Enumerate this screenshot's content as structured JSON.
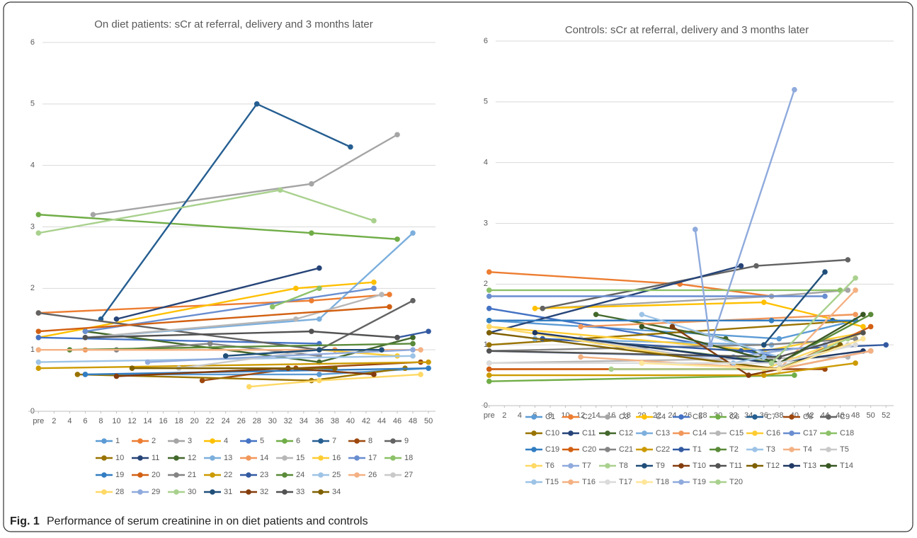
{
  "chart_data": [
    {
      "type": "line",
      "title": "On diet patients:  sCr at referral, delivery and 3 months later",
      "xlim": [
        -1.3,
        50.9
      ],
      "ylim": [
        0,
        6
      ],
      "yticks": [
        0,
        1,
        2,
        3,
        4,
        5,
        6
      ],
      "grid": true,
      "xticks": [
        {
          "value": 0,
          "label": "pre"
        },
        2,
        4,
        6,
        8,
        10,
        12,
        14,
        16,
        18,
        20,
        22,
        24,
        26,
        28,
        30,
        32,
        34,
        36,
        38,
        40,
        42,
        44,
        46,
        48,
        50
      ],
      "legend": "bottom",
      "series": [
        {
          "name": "1",
          "color": "#5B9BD5",
          "x": [
            6,
            36,
            50
          ],
          "values": [
            0.6,
            0.6,
            0.7
          ]
        },
        {
          "name": "2",
          "color": "#ED7D31",
          "x": [
            0,
            35,
            45
          ],
          "values": [
            1.6,
            1.8,
            1.9
          ]
        },
        {
          "name": "3",
          "color": "#A5A5A5",
          "x": [
            7,
            35,
            46
          ],
          "values": [
            3.2,
            3.7,
            4.5
          ]
        },
        {
          "name": "4",
          "color": "#FFC000",
          "x": [
            0,
            33,
            43
          ],
          "values": [
            1.2,
            2.0,
            2.1
          ]
        },
        {
          "name": "5",
          "color": "#4472C4",
          "x": [
            0,
            36
          ],
          "values": [
            1.2,
            1.1
          ]
        },
        {
          "name": "6",
          "color": "#70AD47",
          "x": [
            0,
            35,
            46
          ],
          "values": [
            3.2,
            2.9,
            2.8
          ]
        },
        {
          "name": "7",
          "color": "#255E91",
          "x": [
            8,
            28,
            40
          ],
          "values": [
            1.5,
            5.0,
            4.3
          ]
        },
        {
          "name": "8",
          "color": "#9E480E",
          "x": [
            21,
            33,
            49
          ],
          "values": [
            0.5,
            0.7,
            0.8
          ]
        },
        {
          "name": "9",
          "color": "#636363",
          "x": [
            0,
            36,
            48
          ],
          "values": [
            1.6,
            1.0,
            1.8
          ]
        },
        {
          "name": "10",
          "color": "#997300",
          "x": [
            5,
            35,
            47
          ],
          "values": [
            0.6,
            0.5,
            0.7
          ]
        },
        {
          "name": "11",
          "color": "#264478",
          "x": [
            10,
            36
          ],
          "values": [
            1.5,
            2.33
          ]
        },
        {
          "name": "12",
          "color": "#43682B",
          "x": [
            6,
            36,
            48
          ],
          "values": [
            1.3,
            0.8,
            1.2
          ]
        },
        {
          "name": "13",
          "color": "#7CAFDD",
          "x": [
            6,
            36,
            48
          ],
          "values": [
            1.2,
            1.5,
            2.9
          ]
        },
        {
          "name": "14",
          "color": "#F1975A",
          "x": [
            6,
            38
          ],
          "values": [
            1.0,
            1.0
          ]
        },
        {
          "name": "15",
          "color": "#B7B7B7",
          "x": [
            6,
            33,
            44
          ],
          "values": [
            1.2,
            1.5,
            1.9
          ]
        },
        {
          "name": "16",
          "color": "#FFCD33",
          "x": [
            36,
            46
          ],
          "values": [
            1.0,
            0.9
          ]
        },
        {
          "name": "17",
          "color": "#698ED0",
          "x": [
            6,
            43
          ],
          "values": [
            1.3,
            2.0
          ]
        },
        {
          "name": "18",
          "color": "#8CC168",
          "x": [
            30,
            36
          ],
          "values": [
            1.7,
            2.0
          ]
        },
        {
          "name": "19",
          "color": "#327DC2",
          "x": [
            6,
            50
          ],
          "values": [
            0.6,
            0.7
          ]
        },
        {
          "name": "20",
          "color": "#D26012",
          "x": [
            0,
            45
          ],
          "values": [
            1.3,
            1.7
          ]
        },
        {
          "name": "21",
          "color": "#848484",
          "x": [
            10,
            22,
            36
          ],
          "values": [
            1.0,
            1.1,
            0.9
          ]
        },
        {
          "name": "22",
          "color": "#CC9A00",
          "x": [
            0,
            50
          ],
          "values": [
            0.7,
            0.8
          ]
        },
        {
          "name": "23",
          "color": "#335AA1",
          "x": [
            46,
            50
          ],
          "values": [
            1.2,
            1.3
          ]
        },
        {
          "name": "24",
          "color": "#5A8A39",
          "x": [
            4,
            48
          ],
          "values": [
            1.0,
            1.1
          ]
        },
        {
          "name": "25",
          "color": "#9DC3E6",
          "x": [
            0,
            48
          ],
          "values": [
            0.8,
            0.9
          ]
        },
        {
          "name": "26",
          "color": "#F4B183",
          "x": [
            0,
            49
          ],
          "values": [
            1.0,
            1.0
          ]
        },
        {
          "name": "27",
          "color": "#C9C9C9",
          "x": [
            18,
            36
          ],
          "values": [
            0.7,
            1.0
          ]
        },
        {
          "name": "28",
          "color": "#FFD966",
          "x": [
            27,
            36,
            49
          ],
          "values": [
            0.4,
            0.5,
            0.6
          ]
        },
        {
          "name": "29",
          "color": "#8FAADC",
          "x": [
            14,
            48
          ],
          "values": [
            0.8,
            1.0
          ]
        },
        {
          "name": "30",
          "color": "#A9D18E",
          "x": [
            0,
            31,
            43
          ],
          "values": [
            2.9,
            3.6,
            3.1
          ]
        },
        {
          "name": "31",
          "color": "#1F4E79",
          "x": [
            24,
            36,
            44
          ],
          "values": [
            0.9,
            1.0,
            1.0
          ]
        },
        {
          "name": "32",
          "color": "#843C0C",
          "x": [
            10,
            32,
            43
          ],
          "values": [
            0.57,
            0.7,
            0.6
          ]
        },
        {
          "name": "33",
          "color": "#525252",
          "x": [
            6,
            35,
            46
          ],
          "values": [
            1.2,
            1.3,
            1.2
          ]
        },
        {
          "name": "34",
          "color": "#7F6000",
          "x": [
            12,
            38
          ],
          "values": [
            0.7,
            0.7
          ]
        }
      ]
    },
    {
      "type": "line",
      "title": "Controls: sCr at referral, delivery and 3 months later",
      "xlim": [
        -1,
        53
      ],
      "ylim": [
        0,
        6
      ],
      "yticks": [
        0,
        1,
        2,
        3,
        4,
        5,
        6
      ],
      "grid": true,
      "xticks": [
        {
          "value": 0,
          "label": "pre"
        },
        2,
        4,
        6,
        8,
        10,
        12,
        14,
        16,
        18,
        20,
        22,
        24,
        26,
        28,
        30,
        32,
        34,
        36,
        38,
        40,
        42,
        44,
        46,
        48,
        50,
        52
      ],
      "legend": "bottom",
      "series": [
        {
          "name": "C1",
          "color": "#5B9BD5",
          "x": [
            0,
            38,
            48
          ],
          "values": [
            1.4,
            1.1,
            1.4
          ]
        },
        {
          "name": "C2",
          "color": "#ED7D31",
          "x": [
            0,
            25,
            37
          ],
          "values": [
            2.2,
            2.0,
            1.8
          ]
        },
        {
          "name": "C3",
          "color": "#A5A5A5",
          "x": [
            7,
            37,
            47
          ],
          "values": [
            1.6,
            1.8,
            1.9
          ]
        },
        {
          "name": "C4",
          "color": "#FFC000",
          "x": [
            6,
            36,
            49
          ],
          "values": [
            1.6,
            1.7,
            1.3
          ]
        },
        {
          "name": "C5",
          "color": "#4472C4",
          "x": [
            0,
            38
          ],
          "values": [
            1.6,
            0.8
          ]
        },
        {
          "name": "C6",
          "color": "#70AD47",
          "x": [
            0,
            40
          ],
          "values": [
            0.4,
            0.5
          ]
        },
        {
          "name": "C7",
          "color": "#255E91",
          "x": [
            0,
            45
          ],
          "values": [
            1.4,
            1.4
          ]
        },
        {
          "name": "C8",
          "color": "#9E480E",
          "x": [
            0,
            44
          ],
          "values": [
            0.6,
            0.6
          ]
        },
        {
          "name": "C9",
          "color": "#636363",
          "x": [
            7,
            35,
            47
          ],
          "values": [
            1.6,
            2.3,
            2.4
          ]
        },
        {
          "name": "C10",
          "color": "#997300",
          "x": [
            0,
            48
          ],
          "values": [
            1.0,
            1.4
          ]
        },
        {
          "name": "C11",
          "color": "#264478",
          "x": [
            0,
            33
          ],
          "values": [
            1.2,
            2.3
          ]
        },
        {
          "name": "C12",
          "color": "#43682B",
          "x": [
            14,
            31,
            38
          ],
          "values": [
            1.5,
            1.1,
            0.7
          ]
        },
        {
          "name": "C13",
          "color": "#7CAFDD",
          "x": [
            6,
            37
          ],
          "values": [
            1.1,
            1.0
          ]
        },
        {
          "name": "C14",
          "color": "#F1975A",
          "x": [
            12,
            48
          ],
          "values": [
            1.3,
            1.5
          ]
        },
        {
          "name": "C15",
          "color": "#B7B7B7",
          "x": [
            0,
            47
          ],
          "values": [
            0.7,
            0.8
          ]
        },
        {
          "name": "C16",
          "color": "#FFCD33",
          "x": [
            0,
            36,
            49
          ],
          "values": [
            1.3,
            0.9,
            1.2
          ]
        },
        {
          "name": "C17",
          "color": "#698ED0",
          "x": [
            0,
            44
          ],
          "values": [
            1.8,
            1.8
          ]
        },
        {
          "name": "C18",
          "color": "#8CC168",
          "x": [
            0,
            46
          ],
          "values": [
            1.9,
            1.9
          ]
        },
        {
          "name": "C19",
          "color": "#327DC2",
          "x": [
            0,
            37,
            48
          ],
          "values": [
            1.4,
            1.4,
            1.4
          ]
        },
        {
          "name": "C20",
          "color": "#D26012",
          "x": [
            0,
            38,
            50
          ],
          "values": [
            0.6,
            0.6,
            1.3
          ]
        },
        {
          "name": "C21",
          "color": "#848484",
          "x": [
            0,
            36,
            48
          ],
          "values": [
            0.9,
            1.0,
            1.1
          ]
        },
        {
          "name": "C22",
          "color": "#CC9A00",
          "x": [
            0,
            36,
            48
          ],
          "values": [
            0.5,
            0.5,
            0.7
          ]
        },
        {
          "name": "T1",
          "color": "#335AA1",
          "x": [
            7,
            33,
            52
          ],
          "values": [
            1.1,
            0.9,
            1.0
          ]
        },
        {
          "name": "T2",
          "color": "#5A8A39",
          "x": [
            12,
            38,
            50
          ],
          "values": [
            1.1,
            0.7,
            1.5
          ]
        },
        {
          "name": "T3",
          "color": "#9DC3E6",
          "x": [
            20,
            38
          ],
          "values": [
            1.5,
            0.8
          ]
        },
        {
          "name": "T4",
          "color": "#F4B183",
          "x": [
            38,
            48
          ],
          "values": [
            0.6,
            1.9
          ]
        },
        {
          "name": "T5",
          "color": "#C9C9C9",
          "x": [
            12,
            37,
            47
          ],
          "values": [
            1.1,
            0.6,
            1.0
          ]
        },
        {
          "name": "T6",
          "color": "#FFD966",
          "x": [
            0,
            36,
            49
          ],
          "values": [
            1.3,
            0.6,
            1.2
          ]
        },
        {
          "name": "T7",
          "color": "#8FAADC",
          "x": [
            0,
            32,
            44
          ],
          "values": [
            0.9,
            0.8,
            1.0
          ]
        },
        {
          "name": "T8",
          "color": "#A9D18E",
          "x": [
            16,
            38,
            47
          ],
          "values": [
            0.6,
            0.6,
            1.1
          ]
        },
        {
          "name": "T9",
          "color": "#1F4E79",
          "x": [
            36,
            44
          ],
          "values": [
            1.0,
            2.2
          ]
        },
        {
          "name": "T10",
          "color": "#843C0C",
          "x": [
            24,
            34,
            50
          ],
          "values": [
            1.3,
            0.5,
            0.9
          ]
        },
        {
          "name": "T11",
          "color": "#525252",
          "x": [
            0,
            38,
            49
          ],
          "values": [
            0.9,
            0.8,
            1.2
          ]
        },
        {
          "name": "T12",
          "color": "#7F6000",
          "x": [
            0,
            38,
            46
          ],
          "values": [
            1.2,
            0.6,
            1.0
          ]
        },
        {
          "name": "T13",
          "color": "#1F3864",
          "x": [
            6,
            37,
            49
          ],
          "values": [
            1.2,
            0.7,
            0.9
          ]
        },
        {
          "name": "T14",
          "color": "#385723",
          "x": [
            20,
            38,
            49
          ],
          "values": [
            1.3,
            0.7,
            1.5
          ]
        },
        {
          "name": "T15",
          "color": "#9DC3E6",
          "x": [
            20,
            32,
            36
          ],
          "values": [
            0.7,
            0.7,
            0.8
          ]
        },
        {
          "name": "T16",
          "color": "#F4B183",
          "x": [
            12,
            38,
            50
          ],
          "values": [
            0.8,
            0.6,
            0.9
          ]
        },
        {
          "name": "T17",
          "color": "#DBDBDB",
          "x": [
            0,
            38,
            48
          ],
          "values": [
            0.7,
            0.7,
            1.0
          ]
        },
        {
          "name": "T18",
          "color": "#FFE699",
          "x": [
            20,
            38,
            49
          ],
          "values": [
            0.7,
            0.6,
            1.1
          ]
        },
        {
          "name": "T19",
          "color": "#8FAADC",
          "x": [
            27,
            29,
            40
          ],
          "values": [
            2.9,
            1.0,
            5.2
          ]
        },
        {
          "name": "T20",
          "color": "#A9D18E",
          "x": [
            37,
            48
          ],
          "values": [
            0.7,
            2.1
          ]
        }
      ]
    }
  ],
  "caption": {
    "label": "Fig. 1",
    "text": "Performance of serum creatinine in on diet patients and controls"
  }
}
